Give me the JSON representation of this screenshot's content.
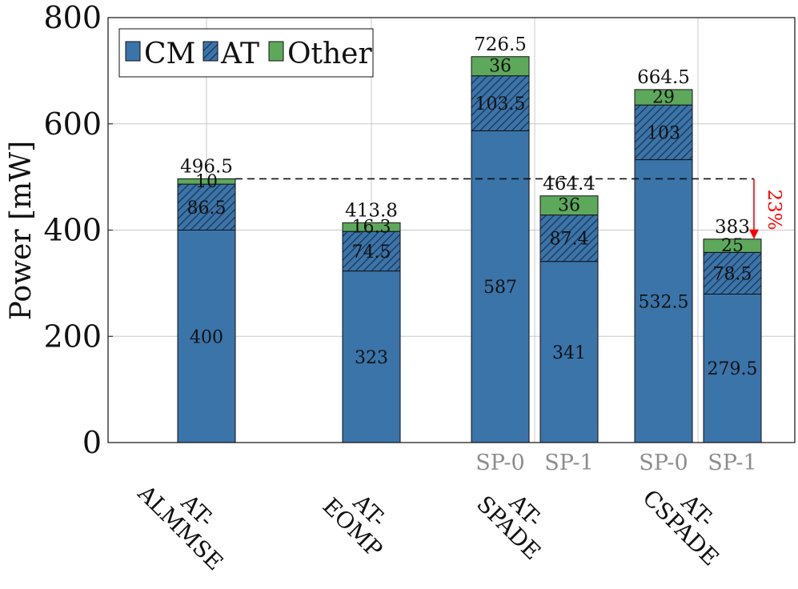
{
  "chart_data": {
    "type": "bar",
    "stacked": true,
    "ylabel": "Power [mW]",
    "ylim": [
      0,
      800
    ],
    "yticks": [
      0,
      200,
      400,
      600,
      800
    ],
    "grid": true,
    "legend_position": "top-left",
    "series": [
      {
        "name": "CM",
        "color": "#3a74a9",
        "pattern": "solid"
      },
      {
        "name": "AT",
        "color": "#3a74a9",
        "pattern": "hatched"
      },
      {
        "name": "Other",
        "color": "#5ea85c",
        "pattern": "solid"
      }
    ],
    "groups": [
      {
        "label": "AT-ALMMSE",
        "label_lines": [
          "AT-",
          "ALMMSE"
        ]
      },
      {
        "label": "AT-EOMP",
        "label_lines": [
          "AT-",
          "EOMP"
        ]
      },
      {
        "label": "AT-SPADE",
        "label_lines": [
          "AT-",
          "SPADE"
        ]
      },
      {
        "label": "AT-CSPADE",
        "label_lines": [
          "AT-",
          "CSPADE"
        ]
      }
    ],
    "bars": [
      {
        "group": 0,
        "sublabel": "",
        "CM": 400,
        "AT": 86.5,
        "Other": 10,
        "total": 496.5,
        "CM_label": "400",
        "AT_label": "86.5",
        "Other_label": "10",
        "total_label": "496.5"
      },
      {
        "group": 1,
        "sublabel": "",
        "CM": 323,
        "AT": 74.5,
        "Other": 16.3,
        "total": 413.8,
        "CM_label": "323",
        "AT_label": "74.5",
        "Other_label": "16.3",
        "total_label": "413.8"
      },
      {
        "group": 2,
        "sublabel": "SP-0",
        "CM": 587,
        "AT": 103.5,
        "Other": 36,
        "total": 726.5,
        "CM_label": "587",
        "AT_label": "103.5",
        "Other_label": "36",
        "total_label": "726.5"
      },
      {
        "group": 2,
        "sublabel": "SP-1",
        "CM": 341,
        "AT": 87.4,
        "Other": 36,
        "total": 464.4,
        "CM_label": "341",
        "AT_label": "87.4",
        "Other_label": "36",
        "total_label": "464.4"
      },
      {
        "group": 3,
        "sublabel": "SP-0",
        "CM": 532.5,
        "AT": 103,
        "Other": 29,
        "total": 664.5,
        "CM_label": "532.5",
        "AT_label": "103",
        "Other_label": "29",
        "total_label": "664.5"
      },
      {
        "group": 3,
        "sublabel": "SP-1",
        "CM": 279.5,
        "AT": 78.5,
        "Other": 25,
        "total": 383,
        "CM_label": "279.5",
        "AT_label": "78.5",
        "Other_label": "25",
        "total_label": "383"
      }
    ],
    "annotations": [
      {
        "type": "dashed-reference-line",
        "y": 496.5
      },
      {
        "type": "reduction-arrow",
        "from": 496.5,
        "to": 383,
        "label": "23%",
        "color": "#ff0000"
      }
    ]
  }
}
